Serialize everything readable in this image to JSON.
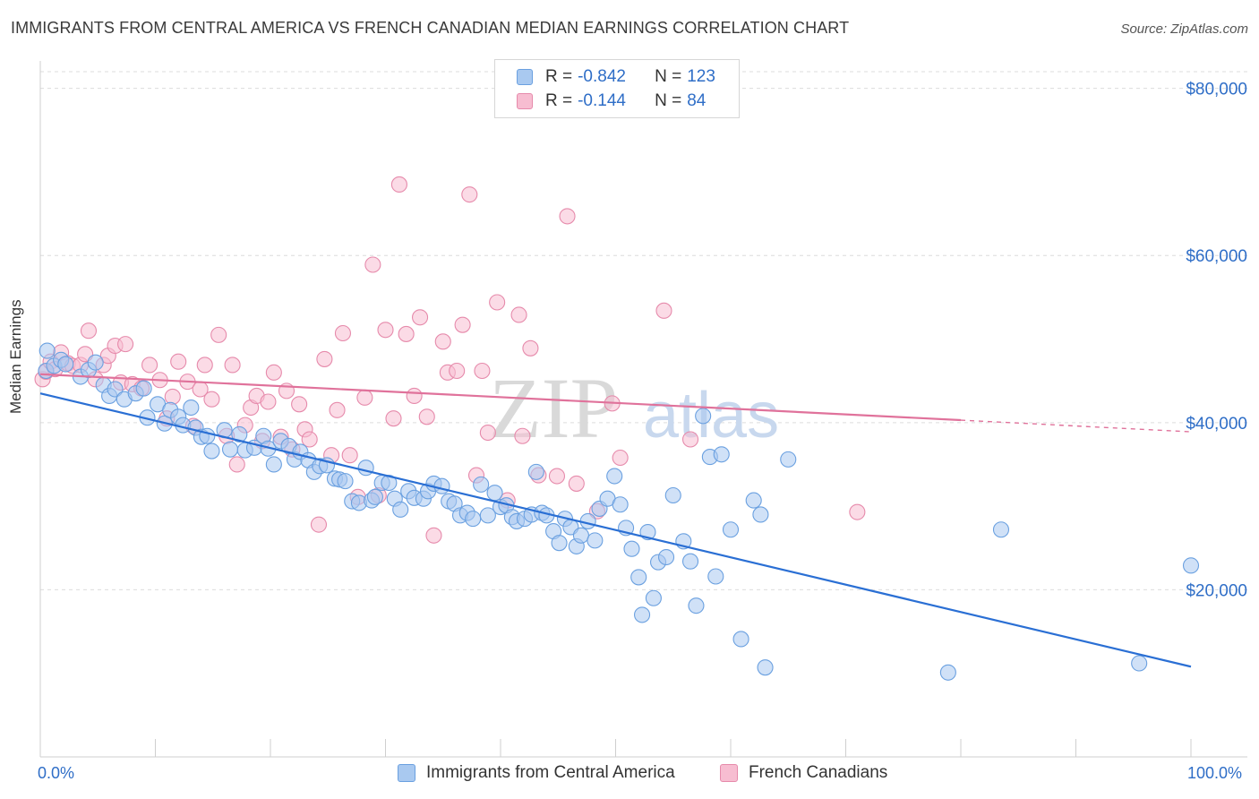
{
  "title": "IMMIGRANTS FROM CENTRAL AMERICA VS FRENCH CANADIAN MEDIAN EARNINGS CORRELATION CHART",
  "source": "Source: ZipAtlas.com",
  "watermark": {
    "zip": "ZIP",
    "atlas": "atlas"
  },
  "legend_stats": [
    {
      "r_label": "R =",
      "r_value": "-0.842",
      "n_label": "N =",
      "n_value": "123",
      "color": "#a9c9f0",
      "border": "#6aa0e0"
    },
    {
      "r_label": "R =",
      "r_value": "-0.144",
      "n_label": "N =",
      "n_value": "84",
      "color": "#f7bdd1",
      "border": "#e68aab"
    }
  ],
  "bottom_legend": [
    {
      "label": "Immigrants from Central America",
      "color": "#a9c9f0",
      "border": "#6aa0e0"
    },
    {
      "label": "French Canadians",
      "color": "#f7bdd1",
      "border": "#e68aab"
    }
  ],
  "x_labels": {
    "min": "0.0%",
    "max": "100.0%"
  },
  "chart_data": {
    "type": "scatter",
    "title": "IMMIGRANTS FROM CENTRAL AMERICA VS FRENCH CANADIAN MEDIAN EARNINGS CORRELATION CHART",
    "xlabel": "",
    "ylabel": "Median Earnings",
    "xlim": [
      0,
      100
    ],
    "ylim": [
      0,
      82000
    ],
    "y_ticks": [
      {
        "value": 20000,
        "label": "$20,000"
      },
      {
        "value": 40000,
        "label": "$40,000"
      },
      {
        "value": 60000,
        "label": "$60,000"
      },
      {
        "value": 80000,
        "label": "$80,000"
      }
    ],
    "grid": "horizontal dashed",
    "legend": "top-center",
    "series": [
      {
        "name": "Immigrants from Central America",
        "color": "#6aa0e0",
        "fill": "#a9c9f0",
        "trend": {
          "x": [
            0,
            100
          ],
          "y": [
            43500,
            10800
          ],
          "color": "#2a6fd4"
        },
        "points": [
          [
            0.5,
            46200
          ],
          [
            0.6,
            48600
          ],
          [
            1.2,
            46800
          ],
          [
            1.8,
            47500
          ],
          [
            2.2,
            47000
          ],
          [
            3.5,
            45500
          ],
          [
            4.2,
            46300
          ],
          [
            4.8,
            47200
          ],
          [
            5.5,
            44500
          ],
          [
            6.0,
            43200
          ],
          [
            6.5,
            44000
          ],
          [
            7.3,
            42800
          ],
          [
            8.3,
            43500
          ],
          [
            9.0,
            44100
          ],
          [
            9.3,
            40600
          ],
          [
            10.2,
            42200
          ],
          [
            10.8,
            39900
          ],
          [
            11.3,
            41500
          ],
          [
            12.0,
            40700
          ],
          [
            12.4,
            39700
          ],
          [
            13.1,
            41800
          ],
          [
            13.5,
            39400
          ],
          [
            14.0,
            38300
          ],
          [
            14.5,
            38400
          ],
          [
            14.9,
            36600
          ],
          [
            16.0,
            39100
          ],
          [
            16.5,
            36800
          ],
          [
            17.3,
            38600
          ],
          [
            17.8,
            36700
          ],
          [
            18.6,
            37000
          ],
          [
            19.4,
            38400
          ],
          [
            19.8,
            36900
          ],
          [
            20.3,
            35000
          ],
          [
            20.9,
            37800
          ],
          [
            21.6,
            37200
          ],
          [
            22.1,
            35600
          ],
          [
            22.6,
            36500
          ],
          [
            23.3,
            35500
          ],
          [
            23.8,
            34100
          ],
          [
            24.3,
            34800
          ],
          [
            24.9,
            34900
          ],
          [
            25.6,
            33300
          ],
          [
            26.0,
            33200
          ],
          [
            26.5,
            33000
          ],
          [
            27.1,
            30600
          ],
          [
            27.7,
            30400
          ],
          [
            28.3,
            34600
          ],
          [
            28.8,
            30700
          ],
          [
            29.1,
            31100
          ],
          [
            29.7,
            32800
          ],
          [
            30.3,
            32800
          ],
          [
            30.8,
            30900
          ],
          [
            31.3,
            29600
          ],
          [
            32.0,
            31800
          ],
          [
            32.5,
            31000
          ],
          [
            33.3,
            30900
          ],
          [
            33.7,
            31800
          ],
          [
            34.2,
            32700
          ],
          [
            34.9,
            32400
          ],
          [
            35.5,
            30600
          ],
          [
            36.0,
            30300
          ],
          [
            36.5,
            28900
          ],
          [
            37.1,
            29200
          ],
          [
            37.6,
            28500
          ],
          [
            38.3,
            32600
          ],
          [
            38.9,
            28900
          ],
          [
            39.5,
            31600
          ],
          [
            40.0,
            29900
          ],
          [
            40.5,
            30100
          ],
          [
            41.0,
            28700
          ],
          [
            41.4,
            28200
          ],
          [
            42.1,
            28500
          ],
          [
            42.7,
            29000
          ],
          [
            43.1,
            34100
          ],
          [
            43.6,
            29200
          ],
          [
            44.0,
            28900
          ],
          [
            44.6,
            27000
          ],
          [
            45.1,
            25600
          ],
          [
            45.6,
            28500
          ],
          [
            46.1,
            27500
          ],
          [
            46.6,
            25200
          ],
          [
            47.0,
            26500
          ],
          [
            47.6,
            28200
          ],
          [
            48.2,
            25900
          ],
          [
            48.6,
            29700
          ],
          [
            49.3,
            30900
          ],
          [
            49.9,
            33600
          ],
          [
            50.4,
            30200
          ],
          [
            50.9,
            27400
          ],
          [
            51.4,
            24900
          ],
          [
            52.0,
            21500
          ],
          [
            52.3,
            17000
          ],
          [
            52.8,
            26900
          ],
          [
            53.3,
            19000
          ],
          [
            53.7,
            23300
          ],
          [
            54.4,
            23900
          ],
          [
            55.0,
            31300
          ],
          [
            55.9,
            25800
          ],
          [
            56.5,
            23400
          ],
          [
            57.0,
            18100
          ],
          [
            57.6,
            40800
          ],
          [
            58.2,
            35900
          ],
          [
            58.7,
            21600
          ],
          [
            59.2,
            36200
          ],
          [
            60.0,
            27200
          ],
          [
            60.9,
            14100
          ],
          [
            62.0,
            30700
          ],
          [
            62.6,
            29000
          ],
          [
            63.0,
            10700
          ],
          [
            65.0,
            35600
          ],
          [
            78.9,
            10100
          ],
          [
            83.5,
            27200
          ],
          [
            95.5,
            11200
          ],
          [
            100.0,
            22900
          ]
        ]
      },
      {
        "name": "French Canadians",
        "color": "#e68aab",
        "fill": "#f7bdd1",
        "trend": {
          "x": [
            0,
            80,
            100
          ],
          "y": [
            45800,
            40300,
            38900
          ],
          "color": "#e0729b",
          "dashed_from": 80
        },
        "points": [
          [
            0.2,
            45200
          ],
          [
            0.5,
            46100
          ],
          [
            0.9,
            47300
          ],
          [
            1.3,
            46400
          ],
          [
            1.8,
            48400
          ],
          [
            2.4,
            47100
          ],
          [
            2.8,
            46800
          ],
          [
            3.5,
            46900
          ],
          [
            3.9,
            48200
          ],
          [
            4.2,
            51000
          ],
          [
            4.8,
            45200
          ],
          [
            5.5,
            46900
          ],
          [
            5.9,
            48000
          ],
          [
            6.5,
            49200
          ],
          [
            7.0,
            44800
          ],
          [
            7.4,
            49400
          ],
          [
            8.0,
            44600
          ],
          [
            8.8,
            44100
          ],
          [
            9.5,
            46900
          ],
          [
            10.4,
            45100
          ],
          [
            11.0,
            40500
          ],
          [
            11.5,
            43100
          ],
          [
            12.0,
            47300
          ],
          [
            12.8,
            44900
          ],
          [
            13.3,
            39600
          ],
          [
            13.9,
            44000
          ],
          [
            14.3,
            46900
          ],
          [
            14.9,
            42800
          ],
          [
            15.5,
            50500
          ],
          [
            16.2,
            38400
          ],
          [
            16.7,
            46900
          ],
          [
            17.1,
            35000
          ],
          [
            17.8,
            39700
          ],
          [
            18.3,
            41800
          ],
          [
            18.8,
            43200
          ],
          [
            19.3,
            37800
          ],
          [
            19.8,
            42500
          ],
          [
            20.3,
            46000
          ],
          [
            20.9,
            38300
          ],
          [
            21.4,
            43800
          ],
          [
            21.9,
            36800
          ],
          [
            22.5,
            42200
          ],
          [
            23.0,
            39200
          ],
          [
            23.4,
            38000
          ],
          [
            24.2,
            27800
          ],
          [
            24.7,
            47600
          ],
          [
            25.3,
            36100
          ],
          [
            25.8,
            41500
          ],
          [
            26.3,
            50700
          ],
          [
            26.9,
            36100
          ],
          [
            27.6,
            31100
          ],
          [
            28.2,
            43000
          ],
          [
            28.9,
            58900
          ],
          [
            29.4,
            31300
          ],
          [
            30.0,
            51100
          ],
          [
            30.7,
            40500
          ],
          [
            31.2,
            68500
          ],
          [
            31.8,
            50600
          ],
          [
            32.5,
            43200
          ],
          [
            33.0,
            52600
          ],
          [
            33.6,
            40700
          ],
          [
            34.2,
            26500
          ],
          [
            35.0,
            49700
          ],
          [
            35.4,
            46000
          ],
          [
            36.2,
            46200
          ],
          [
            36.7,
            51700
          ],
          [
            37.3,
            67300
          ],
          [
            37.9,
            33700
          ],
          [
            38.4,
            46200
          ],
          [
            38.9,
            38800
          ],
          [
            39.7,
            54400
          ],
          [
            40.6,
            30700
          ],
          [
            41.6,
            52900
          ],
          [
            41.9,
            38400
          ],
          [
            42.6,
            48900
          ],
          [
            43.3,
            33700
          ],
          [
            44.9,
            33600
          ],
          [
            45.8,
            64700
          ],
          [
            46.6,
            32700
          ],
          [
            48.4,
            29400
          ],
          [
            49.7,
            42300
          ],
          [
            50.4,
            35800
          ],
          [
            54.2,
            53400
          ],
          [
            56.5,
            38000
          ],
          [
            71.0,
            29300
          ]
        ]
      }
    ]
  }
}
